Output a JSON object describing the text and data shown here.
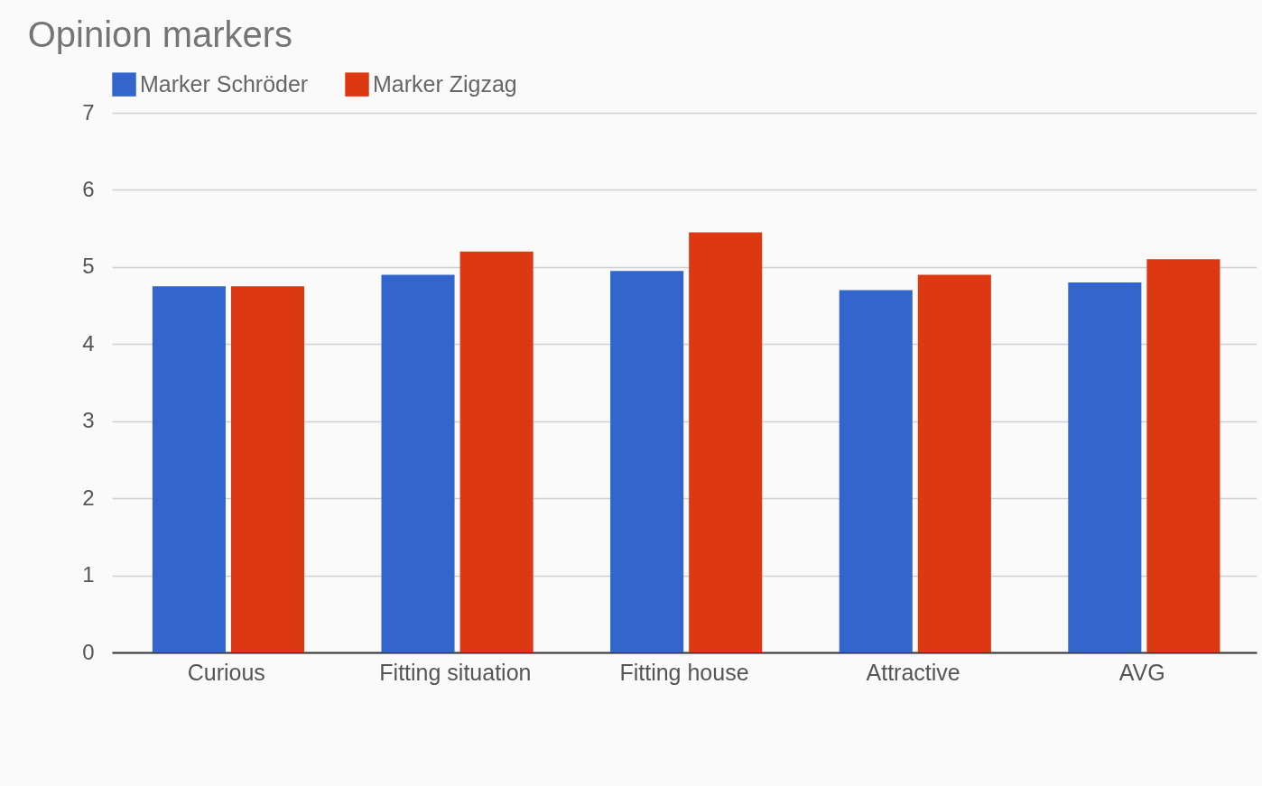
{
  "chart_data": {
    "type": "bar",
    "title": "Opinion markers",
    "categories": [
      "Curious",
      "Fitting situation",
      "Fitting house",
      "Attractive",
      "AVG"
    ],
    "series": [
      {
        "name": "Marker Schröder",
        "color": "#3366cc",
        "values": [
          4.75,
          4.9,
          4.95,
          4.7,
          4.8
        ]
      },
      {
        "name": "Marker Zigzag",
        "color": "#dc3912",
        "values": [
          4.75,
          5.2,
          5.45,
          4.9,
          5.1
        ]
      }
    ],
    "ylim": [
      0,
      7
    ],
    "yticks": [
      0,
      1,
      2,
      3,
      4,
      5,
      6,
      7
    ],
    "grid": true,
    "legend": "top"
  }
}
